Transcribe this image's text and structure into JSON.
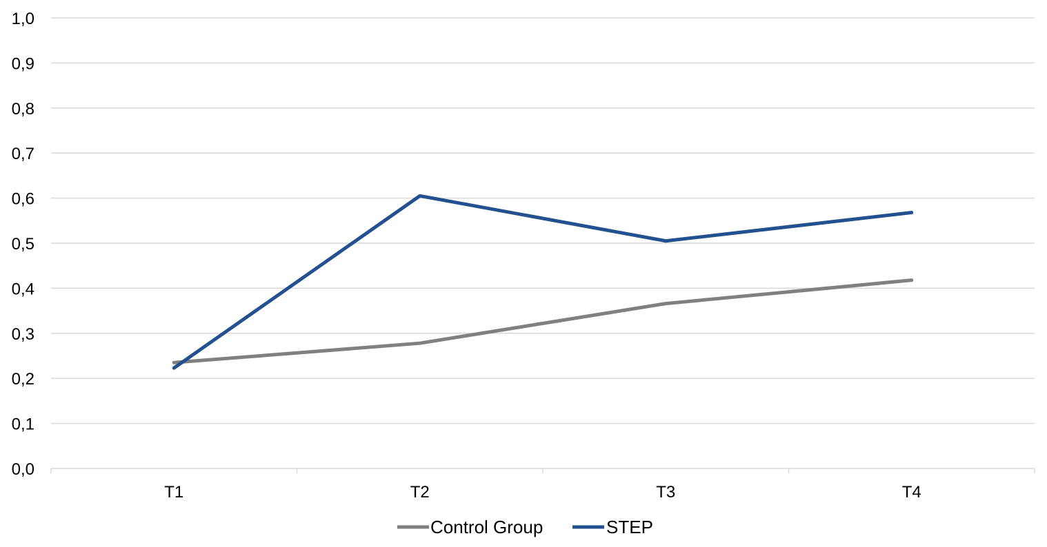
{
  "chart_data": {
    "type": "line",
    "title": "",
    "xlabel": "",
    "ylabel": "",
    "categories": [
      "T1",
      "T2",
      "T3",
      "T4"
    ],
    "y_ticks": [
      "0,0",
      "0,1",
      "0,2",
      "0,3",
      "0,4",
      "0,5",
      "0,6",
      "0,7",
      "0,8",
      "0,9",
      "1,0"
    ],
    "ylim": [
      0,
      1
    ],
    "grid": true,
    "legend_position": "bottom",
    "series": [
      {
        "name": "Control Group",
        "color": "#808080",
        "values": [
          0.235,
          0.278,
          0.366,
          0.418
        ]
      },
      {
        "name": "STEP",
        "color": "#23508f",
        "values": [
          0.223,
          0.605,
          0.505,
          0.568
        ]
      }
    ]
  }
}
